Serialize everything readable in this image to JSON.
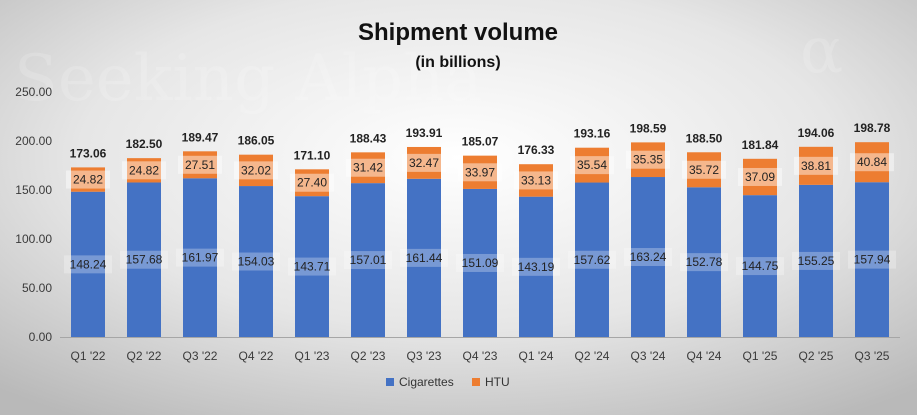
{
  "chart_data": {
    "type": "bar",
    "stacked": true,
    "title": "Shipment volume",
    "subtitle": "(in billions)",
    "watermark": "Seeking Alpha",
    "watermark_symbol": "α",
    "categories": [
      "Q1 '22",
      "Q2 '22",
      "Q3 '22",
      "Q4 '22",
      "Q1 '23",
      "Q2 '23",
      "Q3 '23",
      "Q4 '23",
      "Q1 '24",
      "Q2 '24",
      "Q3 '24",
      "Q4 '24",
      "Q1 '25",
      "Q2 '25",
      "Q3 '25"
    ],
    "series": [
      {
        "name": "Cigarettes",
        "color": "#4472C4",
        "values": [
          148.24,
          157.68,
          161.97,
          154.03,
          143.71,
          157.01,
          161.44,
          151.09,
          143.19,
          157.62,
          163.24,
          152.78,
          144.75,
          155.25,
          157.94
        ]
      },
      {
        "name": "HTU",
        "color": "#ED7D31",
        "values": [
          24.82,
          24.82,
          27.51,
          32.02,
          27.4,
          31.42,
          32.47,
          33.97,
          33.13,
          35.54,
          35.35,
          35.72,
          37.09,
          38.81,
          40.84
        ]
      }
    ],
    "totals": [
      173.06,
      182.5,
      189.47,
      186.05,
      171.1,
      188.43,
      193.91,
      185.07,
      176.33,
      193.16,
      198.59,
      188.5,
      181.84,
      194.06,
      198.78
    ],
    "ylim": [
      0,
      250
    ],
    "yticks": [
      "0.00",
      "50.00",
      "100.00",
      "150.00",
      "200.00",
      "250.00"
    ],
    "xlabel": "",
    "ylabel": "",
    "legend": "bottom"
  }
}
